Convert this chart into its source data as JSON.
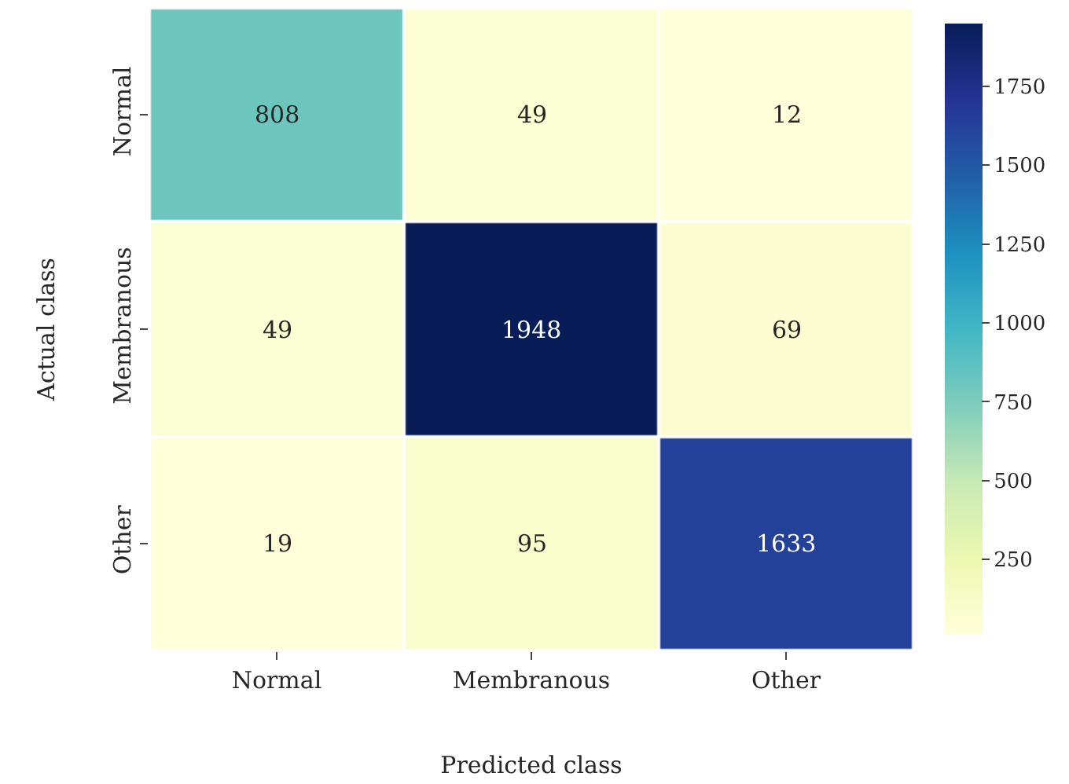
{
  "chart_data": {
    "type": "heatmap",
    "xlabel": "Predicted class",
    "ylabel": "Actual class",
    "categories": [
      "Normal",
      "Membranous",
      "Other"
    ],
    "y_categories": [
      "Normal",
      "Membranous",
      "Other"
    ],
    "cells": [
      [
        808,
        49,
        12
      ],
      [
        49,
        1948,
        69
      ],
      [
        19,
        95,
        1633
      ]
    ],
    "data_labels": true,
    "clim": [
      12,
      1948
    ],
    "cticks": [
      250,
      500,
      750,
      1000,
      1250,
      1500,
      1750
    ]
  }
}
